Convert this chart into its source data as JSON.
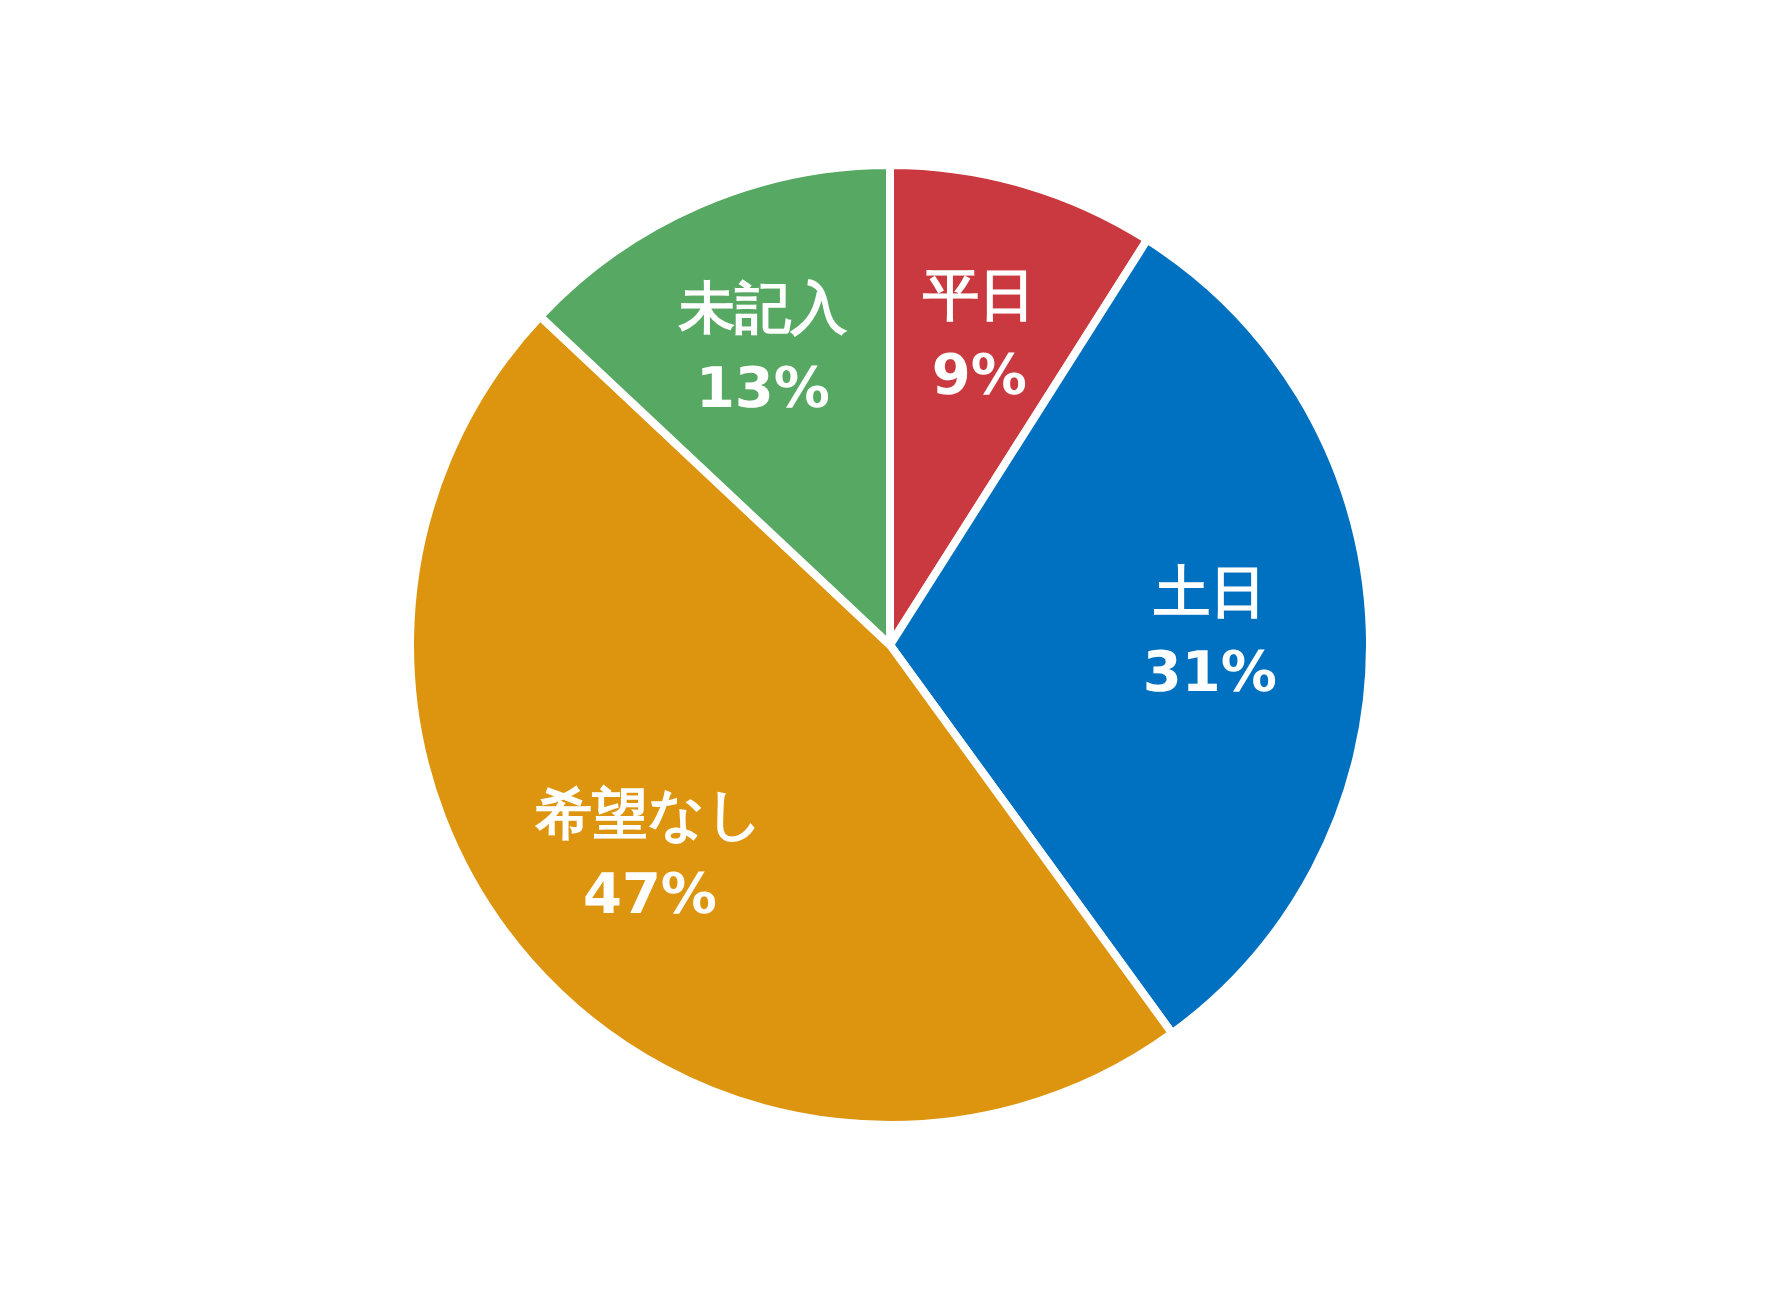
{
  "chart_data": {
    "type": "pie",
    "categories": [
      "平日",
      "土日",
      "希望なし",
      "未記入"
    ],
    "values": [
      9,
      31,
      47,
      13
    ],
    "value_labels": [
      "9%",
      "31%",
      "47%",
      "13%"
    ],
    "colors": [
      "#c9393f",
      "#0070c0",
      "#dd9510",
      "#57a862"
    ],
    "legend": false
  }
}
